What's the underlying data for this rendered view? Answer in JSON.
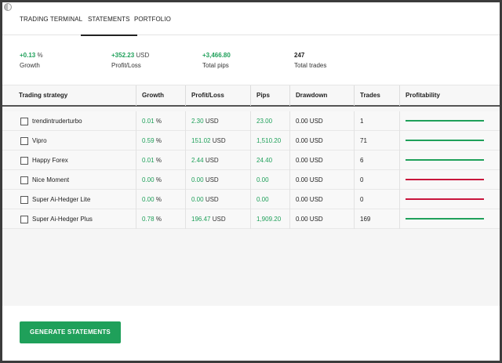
{
  "tabs": [
    {
      "label": "TRADING TERMINAL",
      "active": false
    },
    {
      "label": "STATEMENTS",
      "active": true
    },
    {
      "label": "PORTFOLIO",
      "active": false
    }
  ],
  "summary": {
    "growth": {
      "value": "+0.13",
      "unit": "%",
      "label": "Growth"
    },
    "profit": {
      "value": "+352.23",
      "unit": "USD",
      "label": "Profit/Loss"
    },
    "pips": {
      "value": "+3,466.80",
      "label": "Total pips"
    },
    "trades": {
      "value": "247",
      "label": "Total trades"
    }
  },
  "table": {
    "headers": [
      "Trading strategy",
      "Growth",
      "Profit/Loss",
      "Pips",
      "Drawdown",
      "Trades",
      "Profitability"
    ],
    "rows": [
      {
        "name": "trendintruderturbo",
        "growth": "0.01",
        "growth_unit": "%",
        "profit": "2.30",
        "profit_unit": "USD",
        "pips": "23.00",
        "drawdown": "0.00 USD",
        "trades": "1",
        "profitability_color": "#1fa05a"
      },
      {
        "name": "Vipro",
        "growth": "0.59",
        "growth_unit": "%",
        "profit": "151.02",
        "profit_unit": "USD",
        "pips": "1,510.20",
        "drawdown": "0.00 USD",
        "trades": "71",
        "profitability_color": "#1fa05a"
      },
      {
        "name": "Happy Forex",
        "growth": "0.01",
        "growth_unit": "%",
        "profit": "2.44",
        "profit_unit": "USD",
        "pips": "24.40",
        "drawdown": "0.00 USD",
        "trades": "6",
        "profitability_color": "#1fa05a"
      },
      {
        "name": "Nice Moment",
        "growth": "0.00",
        "growth_unit": "%",
        "profit": "0.00",
        "profit_unit": "USD",
        "pips": "0.00",
        "drawdown": "0.00 USD",
        "trades": "0",
        "profitability_color": "#c8163c"
      },
      {
        "name": "Super Ai-Hedger Lite",
        "growth": "0.00",
        "growth_unit": "%",
        "profit": "0.00",
        "profit_unit": "USD",
        "pips": "0.00",
        "drawdown": "0.00 USD",
        "trades": "0",
        "profitability_color": "#c8163c"
      },
      {
        "name": "Super Ai-Hedger Plus",
        "growth": "0.78",
        "growth_unit": "%",
        "profit": "196.47",
        "profit_unit": "USD",
        "pips": "1,909.20",
        "drawdown": "0.00 USD",
        "trades": "169",
        "profitability_color": "#1fa05a"
      }
    ]
  },
  "actions": {
    "generate_label": "GENERATE STATEMENTS"
  },
  "colors": {
    "accent": "#1fa05a",
    "negative": "#c8163c"
  }
}
